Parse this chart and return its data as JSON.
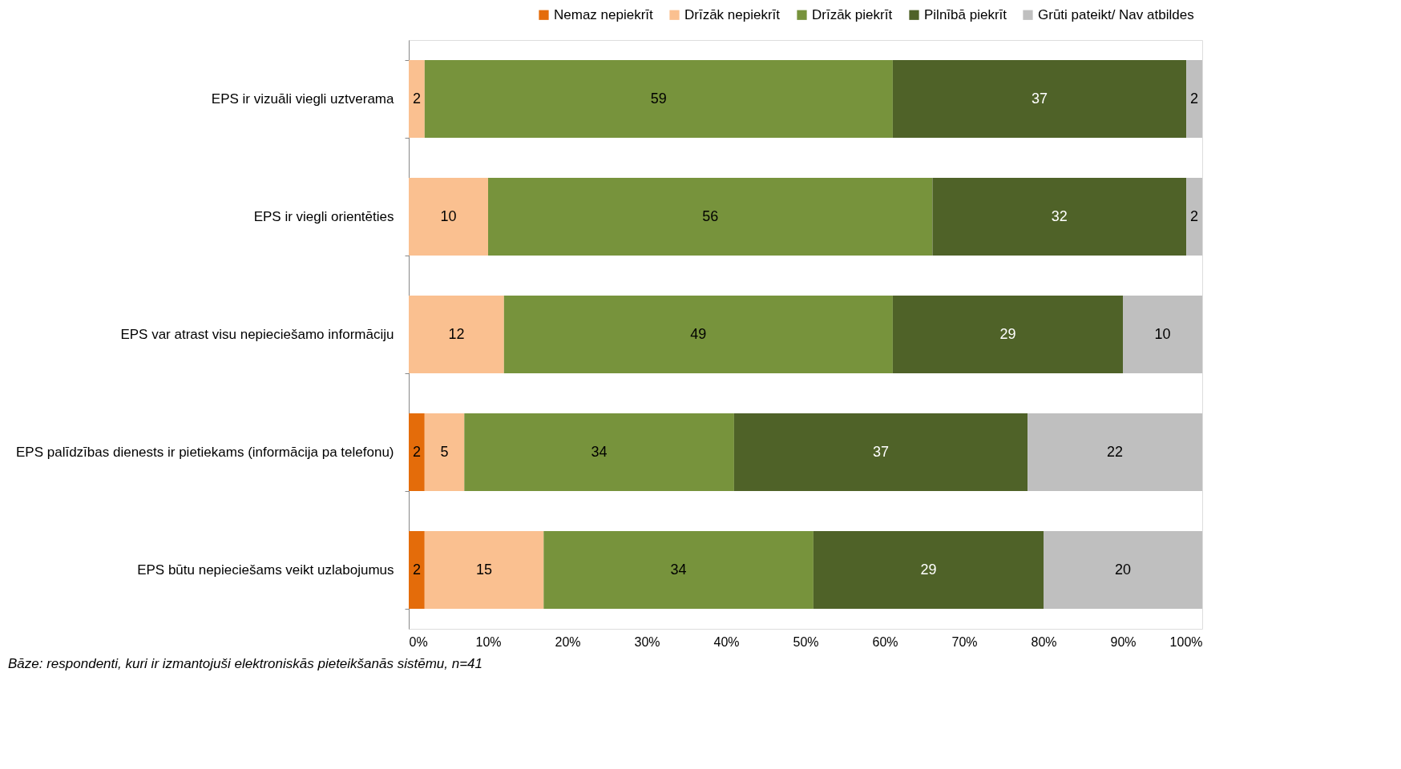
{
  "chart_data": {
    "type": "bar",
    "orientation": "horizontal",
    "stacked": true,
    "categories": [
      "EPS ir vizuāli viegli uztverama",
      "EPS ir viegli orientēties",
      "EPS var atrast visu nepieciešamo informāciju",
      "EPS palīdzības dienests ir pietiekams (informācija pa telefonu)",
      "EPS būtu nepieciešams veikt uzlabojumus"
    ],
    "series": [
      {
        "name": "Nemaz nepiekrīt",
        "color": "#e46c0a",
        "values": [
          null,
          null,
          null,
          2,
          2
        ]
      },
      {
        "name": "Drīzāk nepiekrīt",
        "color": "#fac090",
        "values": [
          2,
          10,
          12,
          5,
          15
        ]
      },
      {
        "name": "Drīzāk piekrīt",
        "color": "#77933c",
        "values": [
          59,
          56,
          49,
          34,
          34
        ]
      },
      {
        "name": "Pilnībā piekrīt",
        "color": "#4f6228",
        "values": [
          37,
          32,
          29,
          37,
          29
        ]
      },
      {
        "name": "Grūti pateikt/ Nav atbildes",
        "color": "#bfbfbf",
        "values": [
          2,
          2,
          10,
          22,
          20
        ]
      }
    ],
    "xlim": [
      0,
      100
    ],
    "xticks": [
      {
        "value": 0,
        "label": "0%"
      },
      {
        "value": 10,
        "label": "10%"
      },
      {
        "value": 20,
        "label": "20%"
      },
      {
        "value": 30,
        "label": "30%"
      },
      {
        "value": 40,
        "label": "40%"
      },
      {
        "value": 50,
        "label": "50%"
      },
      {
        "value": 60,
        "label": "60%"
      },
      {
        "value": 70,
        "label": "70%"
      },
      {
        "value": 80,
        "label": "80%"
      },
      {
        "value": 90,
        "label": "90%"
      },
      {
        "value": 100,
        "label": "100%"
      }
    ],
    "data_labels": true,
    "grid": false,
    "legend": "top right",
    "annotations": [
      "Bāze: respondenti, kuri ir izmantojuši elektroniskās pieteikšanās sistēmu, n=41"
    ]
  }
}
